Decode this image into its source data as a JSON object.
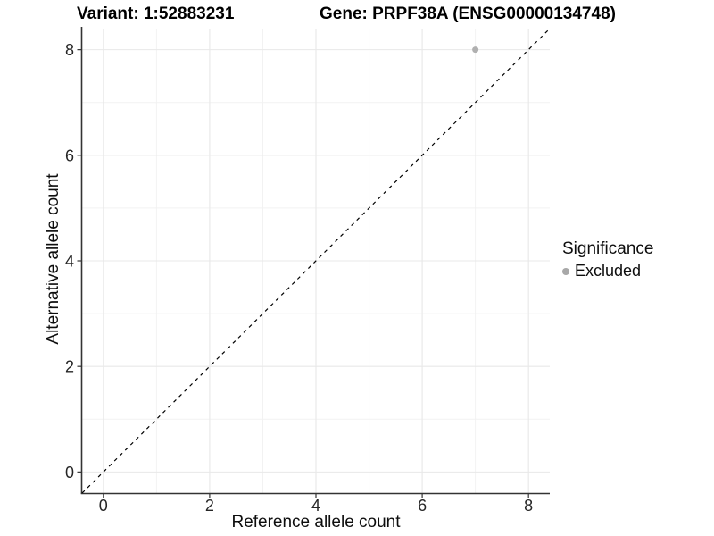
{
  "titles": {
    "left": "Variant: 1:52883231",
    "right": "Gene: PRPF38A (ENSG00000134748)"
  },
  "chart_data": {
    "type": "scatter",
    "title": "Variant: 1:52883231   Gene: PRPF38A (ENSG00000134748)",
    "xlabel": "Reference allele count",
    "ylabel": "Alternative allele count",
    "xlim": [
      -0.4,
      8.4
    ],
    "ylim": [
      -0.4,
      8.4
    ],
    "x_ticks": [
      0,
      2,
      4,
      6,
      8
    ],
    "y_ticks": [
      0,
      2,
      4,
      6,
      8
    ],
    "x_minor_ticks": [
      1,
      3,
      5,
      7
    ],
    "y_minor_ticks": [
      1,
      3,
      5,
      7
    ],
    "grid": "major-and-minor",
    "reference_line": {
      "kind": "identity y=x",
      "style": "dashed",
      "color": "#000000"
    },
    "series": [
      {
        "name": "Excluded",
        "color": "#b0b0b0",
        "points": [
          {
            "x": 7,
            "y": 8
          }
        ]
      }
    ],
    "legend": {
      "title": "Significance",
      "position": "right",
      "entries": [
        {
          "label": "Excluded",
          "color": "#a8a8a8"
        }
      ]
    },
    "colors": {
      "axis_line": "#333333",
      "tick_mark": "#333333",
      "tick_label": "#262626",
      "grid_major": "#e8e8e8",
      "grid_minor": "#f2f2f2",
      "background": "#ffffff"
    }
  }
}
